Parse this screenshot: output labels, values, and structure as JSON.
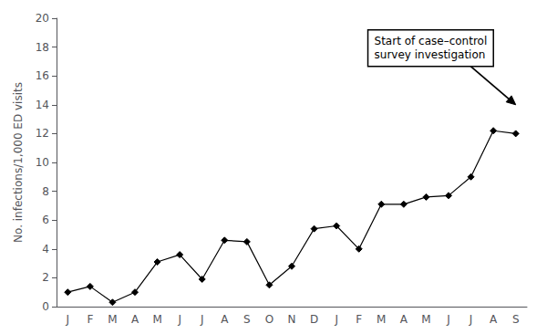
{
  "chart_data": {
    "type": "line",
    "categories": [
      "J",
      "F",
      "M",
      "A",
      "M",
      "J",
      "J",
      "A",
      "S",
      "O",
      "N",
      "D",
      "J",
      "F",
      "M",
      "A",
      "M",
      "J",
      "J",
      "A",
      "S"
    ],
    "values": [
      1.0,
      1.4,
      0.3,
      1.0,
      3.1,
      3.6,
      1.9,
      4.6,
      4.5,
      1.5,
      2.8,
      5.4,
      5.6,
      4.0,
      7.1,
      7.1,
      7.6,
      7.7,
      9.0,
      12.2,
      12.0
    ],
    "color": "#000000",
    "marker": "diamond",
    "ylabel": "No. infections/1,000 ED visits",
    "ylim": [
      0,
      20
    ],
    "yticks": [
      0,
      2,
      4,
      6,
      8,
      10,
      12,
      14,
      16,
      18,
      20
    ],
    "grid": false,
    "annotation": "Start of case–control\nsurvey investigation"
  }
}
